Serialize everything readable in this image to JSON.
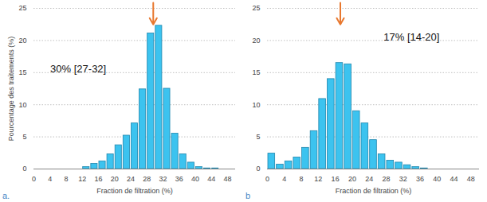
{
  "chart_data": [
    {
      "type": "histogram",
      "panel_label": "a.",
      "x_label": "Fraction de filtration (%)",
      "y_label": "Pourcentage des traitements (%)",
      "bins": [
        0,
        2,
        4,
        6,
        8,
        10,
        12,
        14,
        16,
        18,
        20,
        22,
        24,
        26,
        28,
        30,
        32,
        34,
        36,
        38,
        40,
        42,
        44,
        46,
        48,
        50
      ],
      "values": [
        0,
        0,
        0,
        0,
        0,
        0,
        0.3,
        0.8,
        1.2,
        2.3,
        3.7,
        5.2,
        7.1,
        12.4,
        21.1,
        22.3,
        12.5,
        5.5,
        2.3,
        1.0,
        0.3,
        0.1,
        0.1,
        0,
        0
      ],
      "color": "#3cc3ef",
      "annotation": "30% [27-32]",
      "arrow": 29.6,
      "arrow_color": "#e8782f",
      "xlim": [
        0,
        50
      ],
      "xticks": [
        0,
        4,
        8,
        12,
        16,
        20,
        24,
        28,
        32,
        36,
        40,
        44,
        48
      ],
      "ylim": [
        0,
        25
      ],
      "yticks": [
        0,
        5,
        10,
        15,
        20,
        25
      ],
      "grid": true
    },
    {
      "type": "histogram",
      "panel_label": "b",
      "x_label": "Fraction de filtration (%)",
      "bins": [
        0,
        2,
        4,
        6,
        8,
        10,
        12,
        14,
        16,
        18,
        20,
        22,
        24,
        26,
        28,
        30,
        32,
        34,
        36,
        38,
        40,
        42,
        44,
        46,
        48,
        50
      ],
      "values": [
        2.4,
        0.7,
        1.2,
        1.8,
        3.3,
        5.9,
        10.9,
        14.0,
        16.5,
        16.3,
        9.0,
        7.1,
        4.5,
        2.3,
        1.3,
        1.0,
        0.6,
        0.3,
        0.1,
        0,
        0,
        0,
        0,
        0,
        0
      ],
      "color": "#3cc3ef",
      "annotation": "17% [14-20]",
      "arrow": 17.2,
      "arrow_color": "#e8782f",
      "xlim": [
        0,
        50
      ],
      "xticks": [
        0,
        4,
        8,
        12,
        16,
        20,
        24,
        28,
        32,
        36,
        40,
        44,
        48
      ],
      "ylim": [
        0,
        25
      ],
      "yticks": [
        0,
        5,
        10,
        15,
        20,
        25
      ],
      "grid": true
    }
  ]
}
